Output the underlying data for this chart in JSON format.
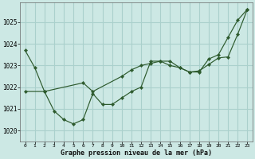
{
  "xlabel": "Graphe pression niveau de la mer (hPa)",
  "bg_color": "#cce8e4",
  "grid_color": "#aad0cc",
  "line_color": "#2d5a2d",
  "ylim": [
    1019.5,
    1025.9
  ],
  "yticks": [
    1020,
    1021,
    1022,
    1023,
    1024,
    1025
  ],
  "series_a": [
    1023.7,
    1022.9,
    1021.8,
    1020.9,
    1020.5,
    1020.3,
    1020.5,
    1021.7,
    1021.2,
    1021.2,
    1021.5,
    1021.8,
    1022.0,
    1023.2,
    1023.2,
    1023.0,
    1022.9,
    1022.7,
    1022.7,
    1023.3,
    1023.5,
    1024.3,
    1025.1,
    1025.6
  ],
  "series_b_x": [
    0,
    2,
    6,
    7,
    10,
    11,
    12,
    13,
    14,
    15,
    16,
    17,
    18,
    19,
    20,
    21,
    22,
    23
  ],
  "series_b_y": [
    1021.8,
    1021.8,
    1022.2,
    1021.8,
    1022.5,
    1022.8,
    1023.0,
    1023.1,
    1023.2,
    1023.2,
    1022.9,
    1022.7,
    1022.75,
    1023.05,
    1023.35,
    1023.4,
    1024.45,
    1025.6
  ]
}
